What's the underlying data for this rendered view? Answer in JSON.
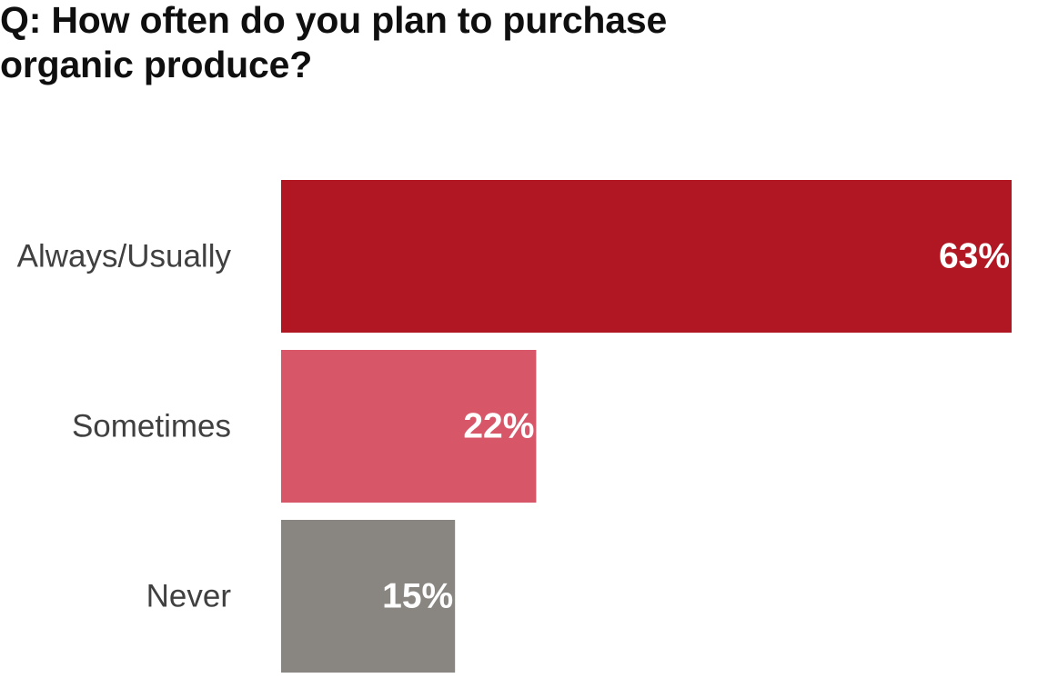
{
  "chart_data": {
    "type": "bar",
    "orientation": "horizontal",
    "title_lines": [
      "Q: How often do you plan to purchase",
      "organic produce?"
    ],
    "categories": [
      "Always/Usually",
      "Sometimes",
      "Never"
    ],
    "values": [
      63,
      22,
      15
    ],
    "value_labels": [
      "63%",
      "22%",
      "15%"
    ],
    "colors": [
      "#b11623",
      "#d75769",
      "#898581"
    ],
    "xlim": [
      0,
      63
    ],
    "grid": false,
    "legend": "none",
    "xlabel": "",
    "ylabel": ""
  }
}
